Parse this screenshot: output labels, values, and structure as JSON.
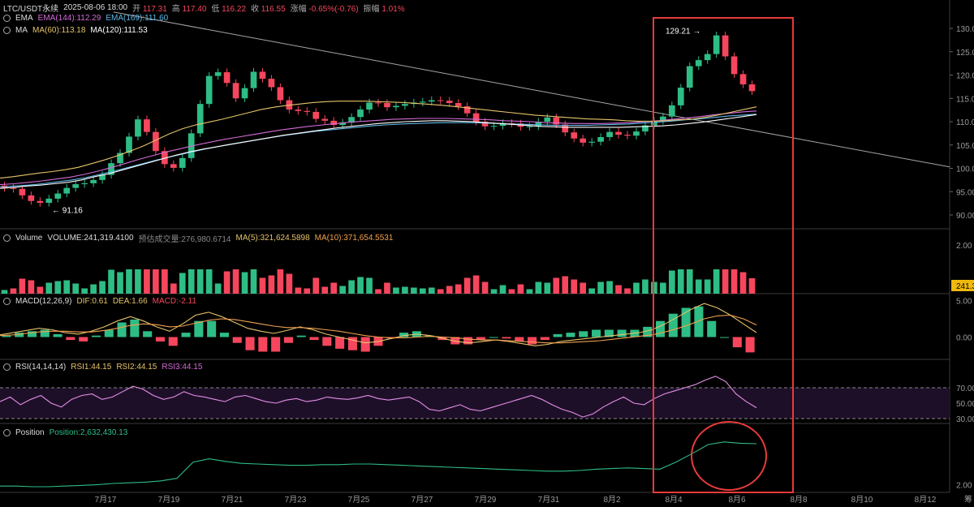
{
  "header": {
    "symbol": "LTC/USDT永续",
    "time": "2025-08-06 18:00",
    "open_label": "开",
    "open": "117.31",
    "high_label": "高",
    "high": "117.40",
    "low_label": "低",
    "low": "116.22",
    "close_label": "收",
    "close": "116.55",
    "change_label": "涨幅",
    "change": "-0.65%(-0.76)",
    "amp_label": "振幅",
    "amp": "1.01%"
  },
  "indicators": {
    "ema_name": "EMA",
    "ema144": "EMA(144):112.29",
    "ema169": "EMA(169):111.60",
    "ma_name": "MA",
    "ma60": "MA(60):113.18",
    "ma120": "MA(120):111.53",
    "vol_name": "Volume",
    "vol_value": "VOLUME:241,319.4100",
    "vol_est": "预估成交量:276,980.6714",
    "vol_ma5": "MA(5):321,624.5898",
    "vol_ma10": "MA(10):371,654.5531",
    "macd_name": "MACD(12,26,9)",
    "macd_dif": "DIF:0.61",
    "macd_dea": "DEA:1.66",
    "macd_val": "MACD:-2.11",
    "rsi_name": "RSI(14,14,14)",
    "rsi1": "RSI1:44.15",
    "rsi2": "RSI2:44.15",
    "rsi3": "RSI3:44.15",
    "pos_name": "Position",
    "pos_value": "Position:2,632,430.13"
  },
  "annotations": {
    "high_label": "129.21",
    "low_label": "91.16",
    "vol_tag": "241.3"
  },
  "colors": {
    "up": "#2ebd85",
    "down": "#f6465d",
    "ma60": "#e6c36a",
    "ma120": "#ffffff",
    "ema144": "#d36ad6",
    "ema169": "#5fb8e8",
    "trend": "#cfcfcf",
    "rect": "#e83a3a"
  },
  "chart_data": {
    "type": "line",
    "x_ticks": [
      "7月17",
      "7月19",
      "7月21",
      "7月23",
      "7月25",
      "7月27",
      "7月29",
      "7月31",
      "8月2",
      "8月4",
      "8月6",
      "8月8",
      "8月10",
      "8月12",
      "筹"
    ],
    "price_axis": [
      "130.00",
      "125.00",
      "120.00",
      "115.00",
      "110.00",
      "105.00",
      "100.00",
      "95.00",
      "90.00"
    ],
    "volume_axis": [
      "2.00"
    ],
    "macd_axis": [
      "5.00",
      "0.00"
    ],
    "rsi_axis": [
      "70.00",
      "50.00",
      "30.00"
    ],
    "position_axis": [
      "2.00"
    ],
    "price_close": [
      95.8,
      95.6,
      94.2,
      93.0,
      92.6,
      93.5,
      94.6,
      95.8,
      96.6,
      96.8,
      97.5,
      98.6,
      101.1,
      103.3,
      106.8,
      110.5,
      107.8,
      103.7,
      100.9,
      100.1,
      102.2,
      107.5,
      113.8,
      119.8,
      120.6,
      118.3,
      115.0,
      117.2,
      120.7,
      119.2,
      117.4,
      114.6,
      112.6,
      112.3,
      112.1,
      110.6,
      110.2,
      109.3,
      109.8,
      111.0,
      112.6,
      114.1,
      114.0,
      113.1,
      113.4,
      113.8,
      114.1,
      114.3,
      114.6,
      114.5,
      114.0,
      113.3,
      111.8,
      110.0,
      109.0,
      109.1,
      109.7,
      109.6,
      108.9,
      109.0,
      110.0,
      110.9,
      109.4,
      107.7,
      106.4,
      105.5,
      105.7,
      106.7,
      107.8,
      107.2,
      107.0,
      107.9,
      109.2,
      110.2,
      111.1,
      113.5,
      117.3,
      121.9,
      123.2,
      124.5,
      128.5,
      124.0,
      120.2,
      118.0,
      116.55
    ],
    "ma60": [
      97.9,
      98.2,
      98.6,
      99.0,
      99.3,
      99.7,
      100.2,
      101.0,
      101.8,
      102.7,
      103.7,
      104.8,
      106.1,
      107.4,
      108.5,
      109.3,
      109.9,
      110.5,
      111.2,
      111.9,
      112.6,
      113.1,
      113.5,
      113.8,
      114.1,
      114.3,
      114.4,
      114.4,
      114.4,
      114.3,
      114.2,
      114.1,
      113.9,
      113.7,
      113.5,
      113.2,
      112.9,
      112.6,
      112.3,
      112.0,
      111.7,
      111.4,
      111.2,
      111.0,
      110.8,
      110.6,
      110.5,
      110.4,
      110.2,
      110.1,
      110.1,
      110.2,
      110.4,
      110.5,
      110.9,
      111.4,
      112.0,
      112.6,
      113.18
    ],
    "ma120": [
      95.7,
      95.9,
      96.2,
      96.4,
      96.7,
      97.0,
      97.5,
      98.2,
      98.8,
      99.6,
      100.4,
      101.2,
      102.0,
      102.8,
      103.5,
      104.1,
      104.6,
      105.1,
      105.6,
      106.1,
      106.6,
      107.1,
      107.5,
      107.9,
      108.3,
      108.7,
      109.0,
      109.3,
      109.6,
      109.8,
      110.0,
      110.1,
      110.2,
      110.2,
      110.1,
      110.0,
      109.8,
      109.6,
      109.4,
      109.2,
      109.0,
      108.9,
      108.8,
      108.8,
      108.8,
      108.8,
      108.8,
      108.9,
      109.0,
      109.1,
      109.3,
      109.6,
      109.9,
      110.3,
      110.7,
      111.1,
      111.53
    ],
    "ema144": [
      96.5,
      96.7,
      97.0,
      97.3,
      97.7,
      98.1,
      98.7,
      99.4,
      100.2,
      101.1,
      102.0,
      102.8,
      103.6,
      104.3,
      105.0,
      105.6,
      106.2,
      106.7,
      107.2,
      107.7,
      108.2,
      108.6,
      109.0,
      109.3,
      109.6,
      109.9,
      110.1,
      110.3,
      110.5,
      110.6,
      110.7,
      110.7,
      110.7,
      110.6,
      110.5,
      110.4,
      110.2,
      110.1,
      110.0,
      109.8,
      109.7,
      109.6,
      109.6,
      109.6,
      109.7,
      109.8,
      110.0,
      110.2,
      110.5,
      110.8,
      111.1,
      111.5,
      111.8,
      112.1,
      112.29
    ],
    "ema169": [
      96.0,
      96.2,
      96.4,
      96.7,
      97.1,
      97.5,
      98.0,
      98.7,
      99.4,
      100.2,
      101.0,
      101.8,
      102.5,
      103.2,
      103.9,
      104.5,
      105.1,
      105.6,
      106.1,
      106.6,
      107.1,
      107.5,
      107.9,
      108.2,
      108.5,
      108.8,
      109.1,
      109.3,
      109.5,
      109.6,
      109.7,
      109.8,
      109.8,
      109.8,
      109.7,
      109.6,
      109.5,
      109.4,
      109.3,
      109.2,
      109.2,
      109.2,
      109.3,
      109.4,
      109.5,
      109.7,
      109.9,
      110.1,
      110.4,
      110.6,
      110.9,
      111.2,
      111.4,
      111.6
    ],
    "trendline": {
      "from": [
        0.0,
        133.5
      ],
      "to": [
        1.0,
        100.3
      ]
    },
    "high": 129.21,
    "low": 91.16,
    "price_range": [
      88,
      133.5
    ],
    "rsi": [
      52,
      58,
      48,
      55,
      60,
      50,
      45,
      55,
      60,
      62,
      55,
      58,
      65,
      72,
      68,
      60,
      55,
      58,
      65,
      60,
      58,
      55,
      52,
      58,
      60,
      56,
      52,
      50,
      54,
      56,
      52,
      54,
      58,
      56,
      55,
      57,
      60,
      56,
      54,
      56,
      58,
      52,
      42,
      40,
      44,
      48,
      42,
      40,
      44,
      48,
      52,
      56,
      60,
      55,
      48,
      42,
      38,
      32,
      36,
      45,
      52,
      58,
      50,
      48,
      56,
      62,
      66,
      70,
      74,
      80,
      85,
      78,
      62,
      52,
      44.15
    ],
    "macd_dif": [
      0.3,
      0.6,
      0.9,
      1.2,
      1.0,
      0.6,
      0.4,
      0.8,
      1.4,
      2.2,
      2.8,
      2.2,
      1.4,
      0.8,
      1.8,
      3.0,
      3.4,
      2.8,
      2.0,
      1.2,
      0.8,
      0.5,
      0.9,
      1.4,
      1.0,
      0.4,
      0.0,
      -0.4,
      -0.8,
      -0.6,
      -0.2,
      0.2,
      0.4,
      0.2,
      -0.2,
      -0.6,
      -0.8,
      -0.6,
      -0.4,
      -0.6,
      -0.9,
      -1.2,
      -1.0,
      -0.6,
      -0.4,
      -0.2,
      0.0,
      0.2,
      0.4,
      0.6,
      1.0,
      1.8,
      2.8,
      3.8,
      4.6,
      4.0,
      3.0,
      1.8,
      0.61
    ],
    "macd_dea": [
      0.2,
      0.3,
      0.5,
      0.7,
      0.8,
      0.8,
      0.7,
      0.7,
      0.9,
      1.2,
      1.6,
      1.8,
      1.7,
      1.4,
      1.5,
      1.9,
      2.3,
      2.5,
      2.4,
      2.1,
      1.8,
      1.5,
      1.3,
      1.3,
      1.2,
      1.0,
      0.8,
      0.5,
      0.2,
      0.0,
      -0.1,
      -0.1,
      0.0,
      0.1,
      0.0,
      -0.1,
      -0.3,
      -0.4,
      -0.4,
      -0.5,
      -0.6,
      -0.7,
      -0.8,
      -0.8,
      -0.7,
      -0.6,
      -0.5,
      -0.3,
      -0.1,
      0.1,
      0.3,
      0.7,
      1.2,
      1.8,
      2.5,
      2.9,
      3.0,
      2.5,
      1.66
    ],
    "position": [
      1.98,
      1.98,
      1.97,
      1.97,
      1.98,
      1.99,
      2.0,
      2.02,
      2.03,
      2.04,
      2.06,
      2.1,
      2.35,
      2.4,
      2.36,
      2.33,
      2.32,
      2.31,
      2.3,
      2.3,
      2.31,
      2.31,
      2.32,
      2.32,
      2.31,
      2.3,
      2.29,
      2.28,
      2.27,
      2.26,
      2.25,
      2.24,
      2.23,
      2.22,
      2.21,
      2.21,
      2.22,
      2.24,
      2.25,
      2.26,
      2.25,
      2.24,
      2.35,
      2.48,
      2.62,
      2.66,
      2.64,
      2.632
    ]
  }
}
